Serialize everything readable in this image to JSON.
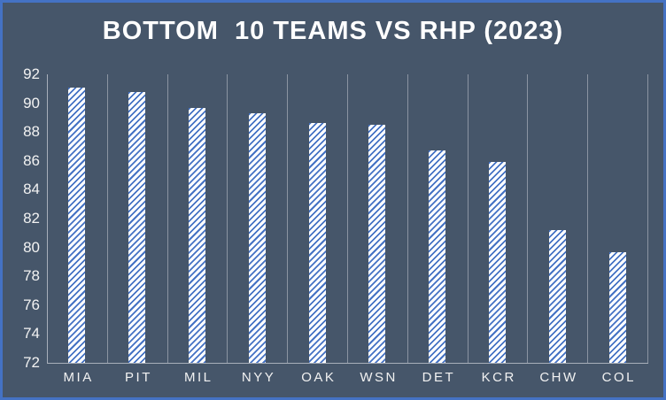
{
  "window": {
    "background": "#46566A",
    "border_color": "#4472C4"
  },
  "chart_data": {
    "type": "bar",
    "title": "BOTTOM  10 TEAMS VS RHP (2023)",
    "categories": [
      "MIA",
      "PIT",
      "MIL",
      "NYY",
      "OAK",
      "WSN",
      "DET",
      "KCR",
      "CHW",
      "COL"
    ],
    "values": [
      91.1,
      90.8,
      89.7,
      89.3,
      88.6,
      88.5,
      86.7,
      85.9,
      81.2,
      79.7
    ],
    "xlabel": "",
    "ylabel": "",
    "ylim": [
      72,
      92
    ],
    "yticks": [
      92,
      90,
      88,
      86,
      84,
      82,
      80,
      78,
      76,
      74,
      72
    ],
    "grid": "vertical-only",
    "legend_position": "none",
    "bar_fill": {
      "pattern": "light-upward-diagonal-hatch",
      "stripe_color": "#4472C4",
      "background": "#FFFFFF"
    },
    "colors": {
      "title": "#FFFFFF",
      "tick_labels": "#F2F2F2",
      "gridline": "#8B94A2",
      "axis_line": "#A8AFBA"
    }
  }
}
